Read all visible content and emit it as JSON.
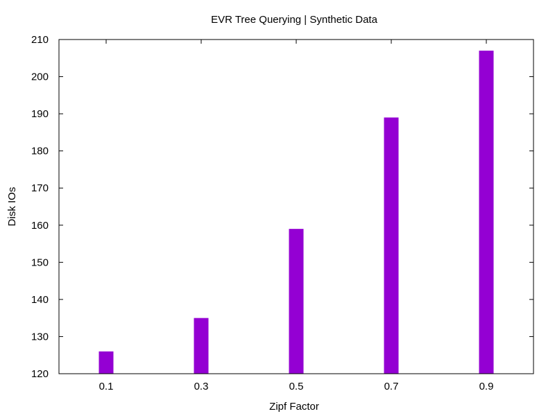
{
  "chart_data": {
    "type": "bar",
    "title": "EVR Tree Querying | Synthetic Data",
    "xlabel": "Zipf Factor",
    "ylabel": "Disk IOs",
    "categories": [
      "0.1",
      "0.3",
      "0.5",
      "0.7",
      "0.9"
    ],
    "values": [
      126,
      135,
      159,
      189,
      207
    ],
    "ylim": [
      120,
      210
    ],
    "yticks": [
      "120",
      "130",
      "140",
      "150",
      "160",
      "170",
      "180",
      "190",
      "200",
      "210"
    ],
    "grid": false,
    "legend": "none",
    "bar_color": "#9400d3"
  }
}
